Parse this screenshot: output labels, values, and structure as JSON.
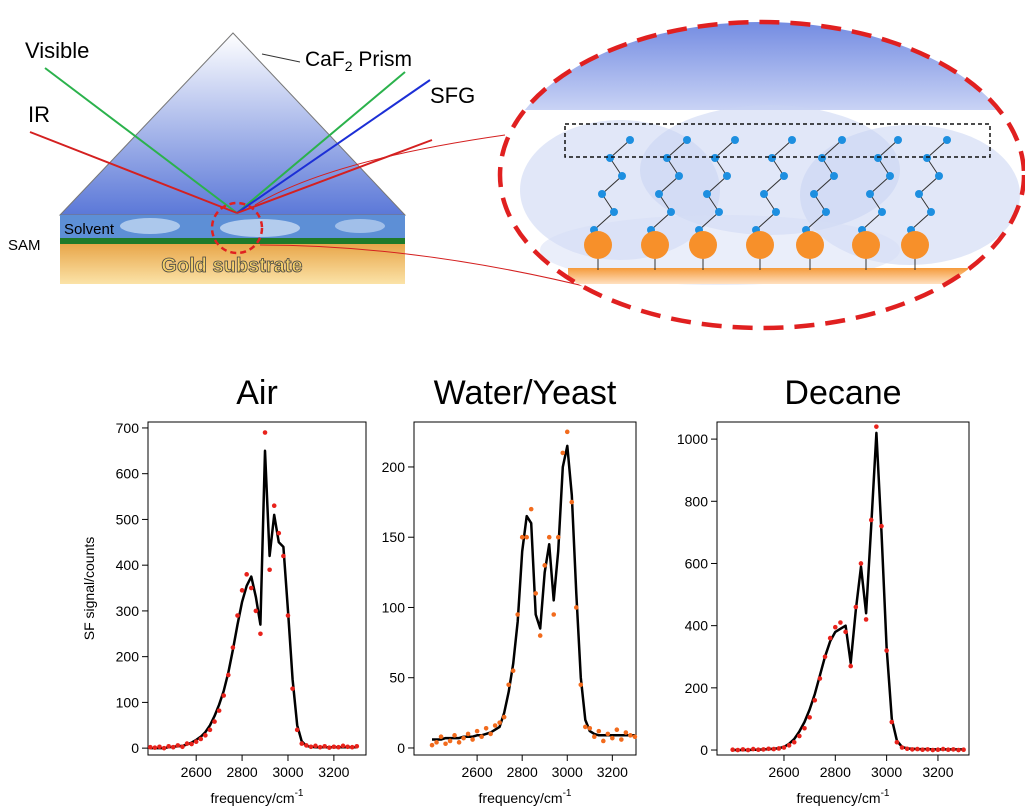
{
  "diagram": {
    "visible": "Visible",
    "ir": "IR",
    "prism": {
      "prefix": "CaF",
      "subscript": "2",
      "suffix": " Prism"
    },
    "sfg": "SFG",
    "solvent": "Solvent",
    "sam": "SAM",
    "substrate": "Gold substrate"
  },
  "chart_data": [
    {
      "type": "line",
      "title": "Air",
      "ylabel": "SF signal/counts",
      "xlabel": "frequency/cm",
      "xlabel_sup": "-1",
      "xlim": [
        2390,
        3340
      ],
      "xticks": [
        2600,
        2800,
        3000,
        3200
      ],
      "ylim": [
        -15,
        713
      ],
      "yticks": [
        0,
        100,
        200,
        300,
        400,
        500,
        600,
        700
      ],
      "x": [
        2400,
        2420,
        2440,
        2460,
        2480,
        2500,
        2520,
        2540,
        2560,
        2580,
        2600,
        2620,
        2640,
        2660,
        2680,
        2700,
        2720,
        2740,
        2760,
        2780,
        2800,
        2820,
        2840,
        2860,
        2880,
        2900,
        2920,
        2940,
        2960,
        2980,
        3000,
        3020,
        3040,
        3060,
        3080,
        3100,
        3120,
        3140,
        3160,
        3180,
        3200,
        3220,
        3240,
        3260,
        3280,
        3300
      ],
      "series": [
        {
          "type": "line",
          "color": "#000000",
          "values": [
            0,
            0,
            0,
            0,
            2,
            3,
            4,
            5,
            8,
            12,
            18,
            25,
            35,
            50,
            70,
            95,
            125,
            165,
            215,
            270,
            320,
            355,
            375,
            330,
            270,
            650,
            420,
            510,
            450,
            440,
            300,
            150,
            50,
            15,
            5,
            3,
            2,
            2,
            2,
            2,
            2,
            2,
            2,
            2,
            2,
            2
          ]
        },
        {
          "type": "scatter",
          "color": "#e8221b",
          "values": [
            2,
            1,
            3,
            0,
            4,
            2,
            6,
            3,
            10,
            9,
            14,
            20,
            28,
            40,
            58,
            82,
            115,
            160,
            220,
            290,
            345,
            380,
            350,
            300,
            250,
            690,
            390,
            530,
            470,
            420,
            290,
            130,
            40,
            10,
            6,
            3,
            5,
            2,
            4,
            1,
            3,
            2,
            5,
            3,
            2,
            4
          ]
        }
      ]
    },
    {
      "type": "line",
      "title": "Water/Yeast",
      "xlabel": "frequency/cm",
      "xlabel_sup": "-1",
      "xlim": [
        2320,
        3305
      ],
      "xticks": [
        2600,
        2800,
        3000,
        3200
      ],
      "ylim": [
        -5,
        232
      ],
      "yticks": [
        0,
        50,
        100,
        150,
        200
      ],
      "x": [
        2400,
        2420,
        2440,
        2460,
        2480,
        2500,
        2520,
        2540,
        2560,
        2580,
        2600,
        2620,
        2640,
        2660,
        2680,
        2700,
        2720,
        2740,
        2760,
        2780,
        2800,
        2820,
        2840,
        2860,
        2880,
        2900,
        2920,
        2940,
        2960,
        2980,
        3000,
        3020,
        3040,
        3060,
        3080,
        3100,
        3120,
        3140,
        3160,
        3180,
        3200,
        3220,
        3240,
        3260,
        3280,
        3300
      ],
      "series": [
        {
          "type": "line",
          "color": "#000000",
          "values": [
            6,
            6,
            6,
            7,
            7,
            7,
            7,
            8,
            8,
            8,
            9,
            9,
            10,
            11,
            13,
            15,
            25,
            40,
            60,
            90,
            140,
            165,
            160,
            95,
            85,
            125,
            145,
            105,
            140,
            200,
            215,
            180,
            110,
            50,
            20,
            12,
            10,
            9,
            9,
            9,
            9,
            9,
            9,
            9,
            9,
            9
          ]
        },
        {
          "type": "scatter",
          "color": "#f26b1d",
          "values": [
            2,
            4,
            8,
            3,
            5,
            9,
            4,
            7,
            10,
            6,
            12,
            8,
            14,
            10,
            16,
            18,
            22,
            45,
            55,
            95,
            150,
            150,
            170,
            110,
            80,
            130,
            150,
            95,
            150,
            210,
            225,
            175,
            100,
            45,
            15,
            14,
            8,
            12,
            5,
            10,
            7,
            13,
            6,
            11,
            9,
            8
          ]
        }
      ]
    },
    {
      "type": "line",
      "title": "Decane",
      "xlabel": "frequency/cm",
      "xlabel_sup": "-1",
      "xlim": [
        2339,
        3321
      ],
      "xticks": [
        2600,
        2800,
        3000,
        3200
      ],
      "ylim": [
        -16,
        1055
      ],
      "yticks": [
        0,
        200,
        400,
        600,
        800,
        1000
      ],
      "x": [
        2400,
        2420,
        2440,
        2460,
        2480,
        2500,
        2520,
        2540,
        2560,
        2580,
        2600,
        2620,
        2640,
        2660,
        2680,
        2700,
        2720,
        2740,
        2760,
        2780,
        2800,
        2820,
        2840,
        2860,
        2880,
        2900,
        2920,
        2940,
        2960,
        2980,
        3000,
        3020,
        3040,
        3060,
        3080,
        3100,
        3120,
        3140,
        3160,
        3180,
        3200,
        3220,
        3240,
        3260,
        3280,
        3300
      ],
      "series": [
        {
          "type": "line",
          "color": "#000000",
          "values": [
            0,
            0,
            0,
            0,
            1,
            1,
            2,
            3,
            4,
            6,
            10,
            20,
            35,
            60,
            90,
            130,
            180,
            240,
            300,
            350,
            380,
            390,
            400,
            280,
            450,
            590,
            440,
            720,
            1020,
            700,
            330,
            100,
            30,
            10,
            5,
            4,
            3,
            3,
            3,
            2,
            2,
            2,
            2,
            2,
            2,
            2
          ]
        },
        {
          "type": "scatter",
          "color": "#e8221b",
          "values": [
            1,
            0,
            2,
            0,
            3,
            1,
            2,
            4,
            3,
            5,
            8,
            15,
            25,
            45,
            70,
            105,
            160,
            230,
            300,
            360,
            395,
            410,
            380,
            270,
            460,
            600,
            420,
            740,
            1040,
            720,
            320,
            90,
            25,
            8,
            4,
            2,
            3,
            1,
            2,
            0,
            1,
            3,
            1,
            2,
            0,
            1
          ]
        }
      ]
    }
  ]
}
